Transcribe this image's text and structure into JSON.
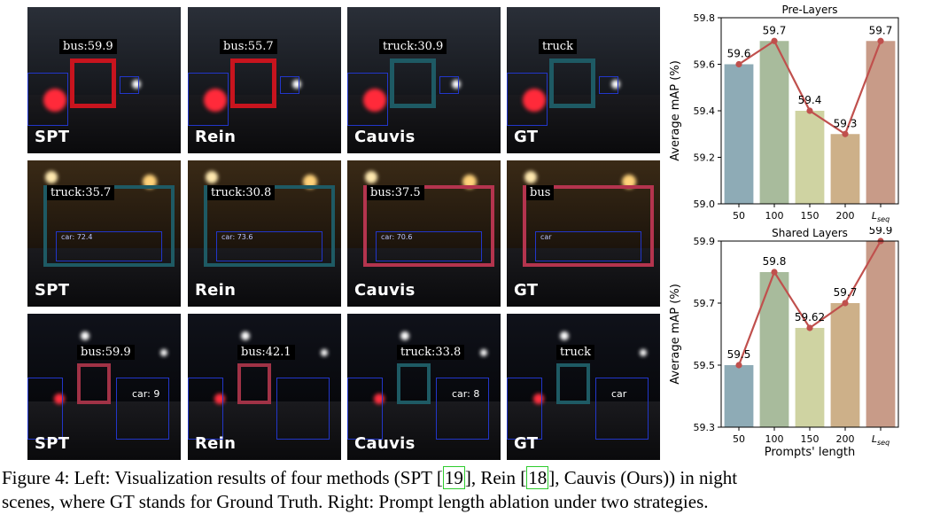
{
  "rows": [
    {
      "tiles": [
        {
          "method": "SPT",
          "label": "bus:59.9",
          "box_color": "#c8141e"
        },
        {
          "method": "Rein",
          "label": "bus:55.7",
          "box_color": "#c8141e"
        },
        {
          "method": "Cauvis",
          "label": "truck:30.9",
          "box_color": "#1e5a64"
        },
        {
          "method": "GT",
          "label": "truck",
          "box_color": "#1e5a64"
        }
      ]
    },
    {
      "tiles": [
        {
          "method": "SPT",
          "label": "truck:35.7",
          "box_color": "#1e5a64",
          "small": "car: 72.4"
        },
        {
          "method": "Rein",
          "label": "truck:30.8",
          "box_color": "#1e5a64",
          "small": "car: 73.6"
        },
        {
          "method": "Cauvis",
          "label": "bus:37.5",
          "box_color": "#b4344e",
          "small": "car: 70.6"
        },
        {
          "method": "GT",
          "label": "bus",
          "box_color": "#b4344e",
          "small": "car"
        }
      ]
    },
    {
      "tiles": [
        {
          "method": "SPT",
          "label": "bus:59.9",
          "box_color": "#a03246",
          "small": "car: 9"
        },
        {
          "method": "Rein",
          "label": "bus:42.1",
          "box_color": "#a03246",
          "small": ""
        },
        {
          "method": "Cauvis",
          "label": "truck:33.8",
          "box_color": "#1e5a64",
          "small": "car: 8"
        },
        {
          "method": "GT",
          "label": "truck",
          "box_color": "#1e5a64",
          "small": "car"
        }
      ]
    }
  ],
  "chart_data": [
    {
      "type": "bar",
      "title": "Pre-Layers",
      "categories": [
        "50",
        "100",
        "150",
        "200",
        "L_seq"
      ],
      "values": [
        59.6,
        59.7,
        59.4,
        59.3,
        59.7
      ],
      "value_labels": [
        "59.6",
        "59.7",
        "59.4",
        "59.3",
        "59.7"
      ],
      "ylabel": "Average mAP (%)",
      "xlabel": "",
      "ylim": [
        59.0,
        59.8
      ],
      "yticks": [
        "59.0",
        "59.2",
        "59.4",
        "59.6",
        "59.8"
      ],
      "bar_colors": [
        "#8eabb6",
        "#a8bb9c",
        "#cfd3a2",
        "#cdb089",
        "#c89b88"
      ],
      "line_color": "#c0504d"
    },
    {
      "type": "bar",
      "title": "Shared Layers",
      "categories": [
        "50",
        "100",
        "150",
        "200",
        "L_seq"
      ],
      "values": [
        59.5,
        59.8,
        59.62,
        59.7,
        59.9
      ],
      "value_labels": [
        "59.5",
        "59.8",
        "59.62",
        "59.7",
        "59.9"
      ],
      "ylabel": "Average mAP (%)",
      "xlabel": "Prompts' length",
      "ylim": [
        59.3,
        59.9
      ],
      "yticks": [
        "59.3",
        "59.5",
        "59.7",
        "59.9"
      ],
      "bar_colors": [
        "#8eabb6",
        "#a8bb9c",
        "#cfd3a2",
        "#cdb089",
        "#c89b88"
      ],
      "line_color": "#c0504d"
    }
  ],
  "caption": {
    "lead": "Figure 4: Left: Visualization results of four methods (SPT [",
    "ref1": "19",
    "mid1": "], Rein [",
    "ref2": "18",
    "mid2": "], Cauvis (Ours)) in night",
    "line2": "scenes, where GT stands for Ground Truth. Right: Prompt length ablation under two strategies."
  }
}
